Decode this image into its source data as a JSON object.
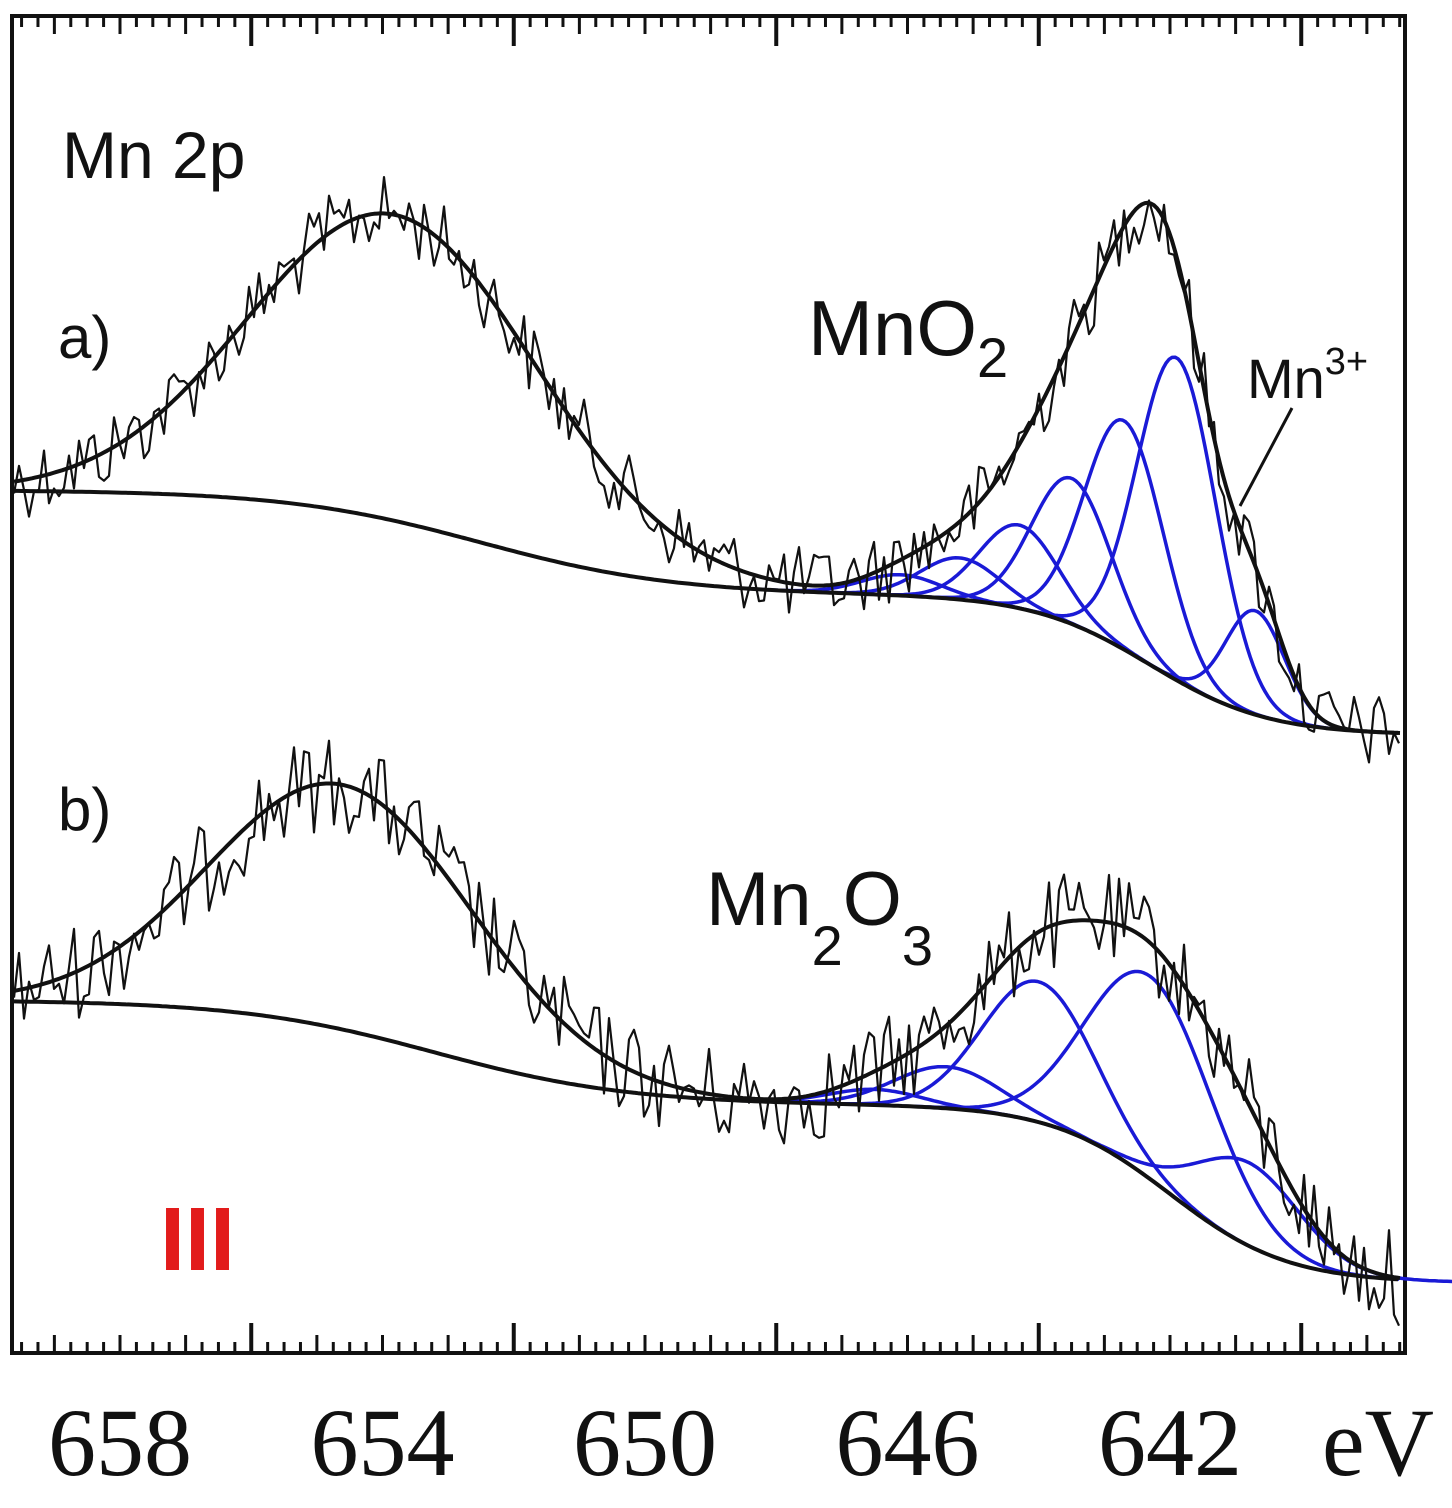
{
  "chart_data": {
    "type": "line",
    "title": "Mn 2p",
    "xlabel": "eV",
    "ylabel": "",
    "x_reversed": true,
    "xlim": [
      660.0,
      638.0
    ],
    "xticks": [
      658,
      654,
      650,
      646,
      642
    ],
    "xtick_labels": [
      "658",
      "654",
      "650",
      "646",
      "642"
    ],
    "grid": false,
    "legend": "none",
    "annotations": {
      "top_panel_label": "a)",
      "bottom_panel_label": "b)",
      "top_species": "MnO",
      "top_species_sub": "2",
      "shoulder_label": "Mn",
      "shoulder_sup": "3+",
      "bottom_species_1": "Mn",
      "bottom_species_sub1": "2",
      "bottom_species_2": "O",
      "bottom_species_sub2": "3",
      "marker": "III"
    },
    "colors": {
      "data": "#111111",
      "fit": "#111111",
      "components": "#1a1ad6",
      "marker": "#e21b1b"
    },
    "panels": [
      {
        "name": "a)",
        "peak_2p3_2_eV": 641.9,
        "peak_2p1_2_eV": 653.8,
        "components": [
          {
            "center": 641.9,
            "height": 0.62,
            "width": 0.6
          },
          {
            "center": 642.7,
            "height": 0.44,
            "width": 0.6
          },
          {
            "center": 643.5,
            "height": 0.28,
            "width": 0.6
          },
          {
            "center": 644.3,
            "height": 0.16,
            "width": 0.6
          },
          {
            "center": 645.2,
            "height": 0.08,
            "width": 0.6
          },
          {
            "center": 646.1,
            "height": 0.04,
            "width": 0.6
          },
          {
            "center": 640.7,
            "height": 0.2,
            "width": 0.45
          }
        ]
      },
      {
        "name": "b)",
        "peak_2p3_2_eV": 642.3,
        "peak_2p1_2_eV": 654.6,
        "components": [
          {
            "center": 642.3,
            "height": 0.39,
            "width": 0.95
          },
          {
            "center": 644.0,
            "height": 0.27,
            "width": 0.85
          },
          {
            "center": 645.4,
            "height": 0.08,
            "width": 0.8
          },
          {
            "center": 646.5,
            "height": 0.03,
            "width": 0.7
          },
          {
            "center": 640.8,
            "height": 0.16,
            "width": 0.8
          }
        ]
      }
    ]
  }
}
